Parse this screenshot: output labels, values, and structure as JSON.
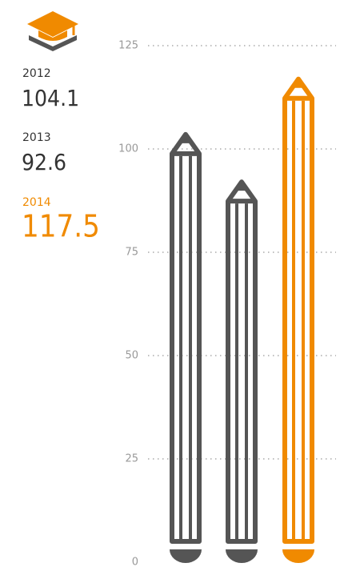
{
  "chart_data": {
    "type": "pencil-bar",
    "categories": [
      "2012",
      "2013",
      "2014"
    ],
    "values": [
      104.1,
      92.6,
      117.5
    ],
    "colors": [
      "#555555",
      "#555555",
      "#f08a00"
    ],
    "ylim": [
      0,
      125
    ],
    "yticks": [
      0,
      25,
      50,
      75,
      100,
      125
    ],
    "grid": true
  }
}
